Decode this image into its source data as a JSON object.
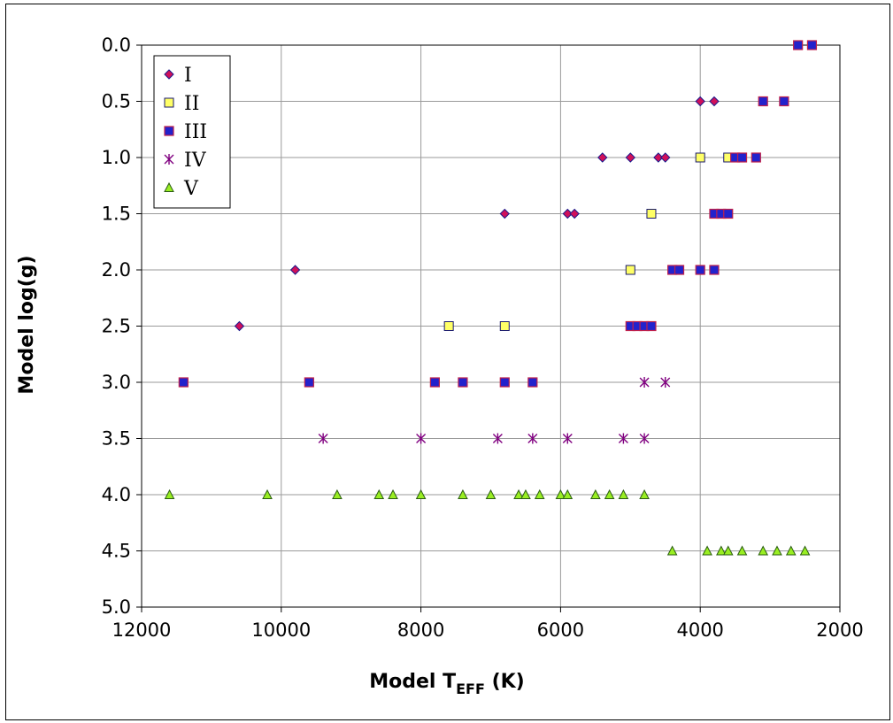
{
  "chart_data": {
    "type": "scatter",
    "xlabel": "Model T",
    "xlabel_sub": "EFF",
    "xlabel_suffix": " (K)",
    "ylabel": "Model log(g)",
    "xlim": [
      12000,
      2000
    ],
    "ylim": [
      0,
      5
    ],
    "x_reversed": true,
    "y_reversed": true,
    "x_ticks": [
      "12000",
      "10000",
      "8000",
      "6000",
      "4000",
      "2000"
    ],
    "y_ticks": [
      "0.0",
      "0.5",
      "1.0",
      "1.5",
      "2.0",
      "2.5",
      "3.0",
      "3.5",
      "4.0",
      "4.5",
      "5.0"
    ],
    "grid": true,
    "legend_position": "top-left",
    "series": [
      {
        "name": "I",
        "marker": "diamond",
        "color": "#d0105a",
        "points": [
          [
            10600,
            2.5
          ],
          [
            9800,
            2.0
          ],
          [
            6800,
            1.5
          ],
          [
            5900,
            1.5
          ],
          [
            5800,
            1.5
          ],
          [
            5400,
            1.0
          ],
          [
            5000,
            1.0
          ],
          [
            4600,
            1.0
          ],
          [
            4500,
            1.0
          ],
          [
            4000,
            0.5
          ],
          [
            3800,
            0.5
          ]
        ]
      },
      {
        "name": "II",
        "marker": "square",
        "color": "#ffff66",
        "points": [
          [
            7600,
            2.5
          ],
          [
            6800,
            2.5
          ],
          [
            5000,
            2.0
          ],
          [
            4700,
            1.5
          ],
          [
            4000,
            1.0
          ],
          [
            3600,
            1.0
          ]
        ]
      },
      {
        "name": "III",
        "marker": "square-filled",
        "color": "#2222cc",
        "points": [
          [
            11400,
            3.0
          ],
          [
            9600,
            3.0
          ],
          [
            7800,
            3.0
          ],
          [
            7400,
            3.0
          ],
          [
            6800,
            3.0
          ],
          [
            6400,
            3.0
          ],
          [
            5000,
            2.5
          ],
          [
            4900,
            2.5
          ],
          [
            4800,
            2.5
          ],
          [
            4700,
            2.5
          ],
          [
            4400,
            2.0
          ],
          [
            4300,
            2.0
          ],
          [
            4000,
            2.0
          ],
          [
            3800,
            2.0
          ],
          [
            3800,
            1.5
          ],
          [
            3700,
            1.5
          ],
          [
            3600,
            1.5
          ],
          [
            3500,
            1.0
          ],
          [
            3400,
            1.0
          ],
          [
            3200,
            1.0
          ],
          [
            3100,
            0.5
          ],
          [
            2800,
            0.5
          ],
          [
            2600,
            0.0
          ],
          [
            2400,
            0.0
          ]
        ]
      },
      {
        "name": "IV",
        "marker": "asterisk",
        "color": "#800080",
        "points": [
          [
            9400,
            3.5
          ],
          [
            8000,
            3.5
          ],
          [
            6900,
            3.5
          ],
          [
            6400,
            3.5
          ],
          [
            5900,
            3.5
          ],
          [
            5100,
            3.5
          ],
          [
            4800,
            3.5
          ],
          [
            4800,
            3.0
          ],
          [
            4500,
            3.0
          ]
        ]
      },
      {
        "name": "V",
        "marker": "triangle",
        "color": "#99ee22",
        "points": [
          [
            11600,
            4.0
          ],
          [
            10200,
            4.0
          ],
          [
            9200,
            4.0
          ],
          [
            8600,
            4.0
          ],
          [
            8400,
            4.0
          ],
          [
            8000,
            4.0
          ],
          [
            7400,
            4.0
          ],
          [
            7000,
            4.0
          ],
          [
            6600,
            4.0
          ],
          [
            6500,
            4.0
          ],
          [
            6300,
            4.0
          ],
          [
            6000,
            4.0
          ],
          [
            5900,
            4.0
          ],
          [
            5500,
            4.0
          ],
          [
            5300,
            4.0
          ],
          [
            5100,
            4.0
          ],
          [
            4800,
            4.0
          ],
          [
            4400,
            4.5
          ],
          [
            3900,
            4.5
          ],
          [
            3700,
            4.5
          ],
          [
            3600,
            4.5
          ],
          [
            3400,
            4.5
          ],
          [
            3100,
            4.5
          ],
          [
            2900,
            4.5
          ],
          [
            2700,
            4.5
          ],
          [
            2500,
            4.5
          ]
        ]
      }
    ]
  }
}
